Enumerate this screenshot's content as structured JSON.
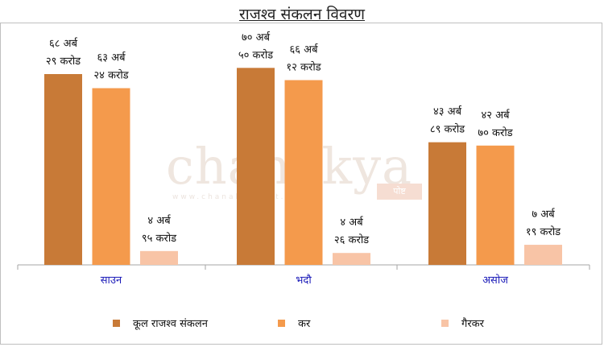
{
  "chart_data": {
    "type": "bar",
    "title": "राजश्व संकलन विवरण",
    "categories": [
      "साउन",
      "भदौ",
      "असोज"
    ],
    "series": [
      {
        "name": "कूल राजश्व संकलन",
        "color": "#c87a37",
        "values": [
          68.29,
          70.5,
          43.89
        ],
        "labels": [
          [
            "६८ अर्ब",
            "२९ करोड"
          ],
          [
            "७० अर्ब",
            "५० करोड"
          ],
          [
            "४३ अर्ब",
            "८९ करोड"
          ]
        ]
      },
      {
        "name": "कर",
        "color": "#f49a4c",
        "values": [
          63.24,
          66.12,
          42.7
        ],
        "labels": [
          [
            "६३ अर्ब",
            "२४ करोड"
          ],
          [
            "६६ अर्ब",
            "१२ करोड"
          ],
          [
            "४२ अर्ब",
            "७० करोड"
          ]
        ]
      },
      {
        "name": "गैरकर",
        "color": "#f8c4a6",
        "values": [
          4.95,
          4.26,
          7.19
        ],
        "labels": [
          [
            "४ अर्ब",
            "९५ करोड"
          ],
          [
            "४ अर्ब",
            "२६ करोड"
          ],
          [
            "७ अर्ब",
            "१९ करोड"
          ]
        ]
      }
    ],
    "ylim": [
      0,
      85
    ],
    "grid": false,
    "legend": "bottom"
  },
  "watermark": {
    "text": "chanakya",
    "sub": "www.chanakyapost.com",
    "badge": "पोष्ट"
  }
}
